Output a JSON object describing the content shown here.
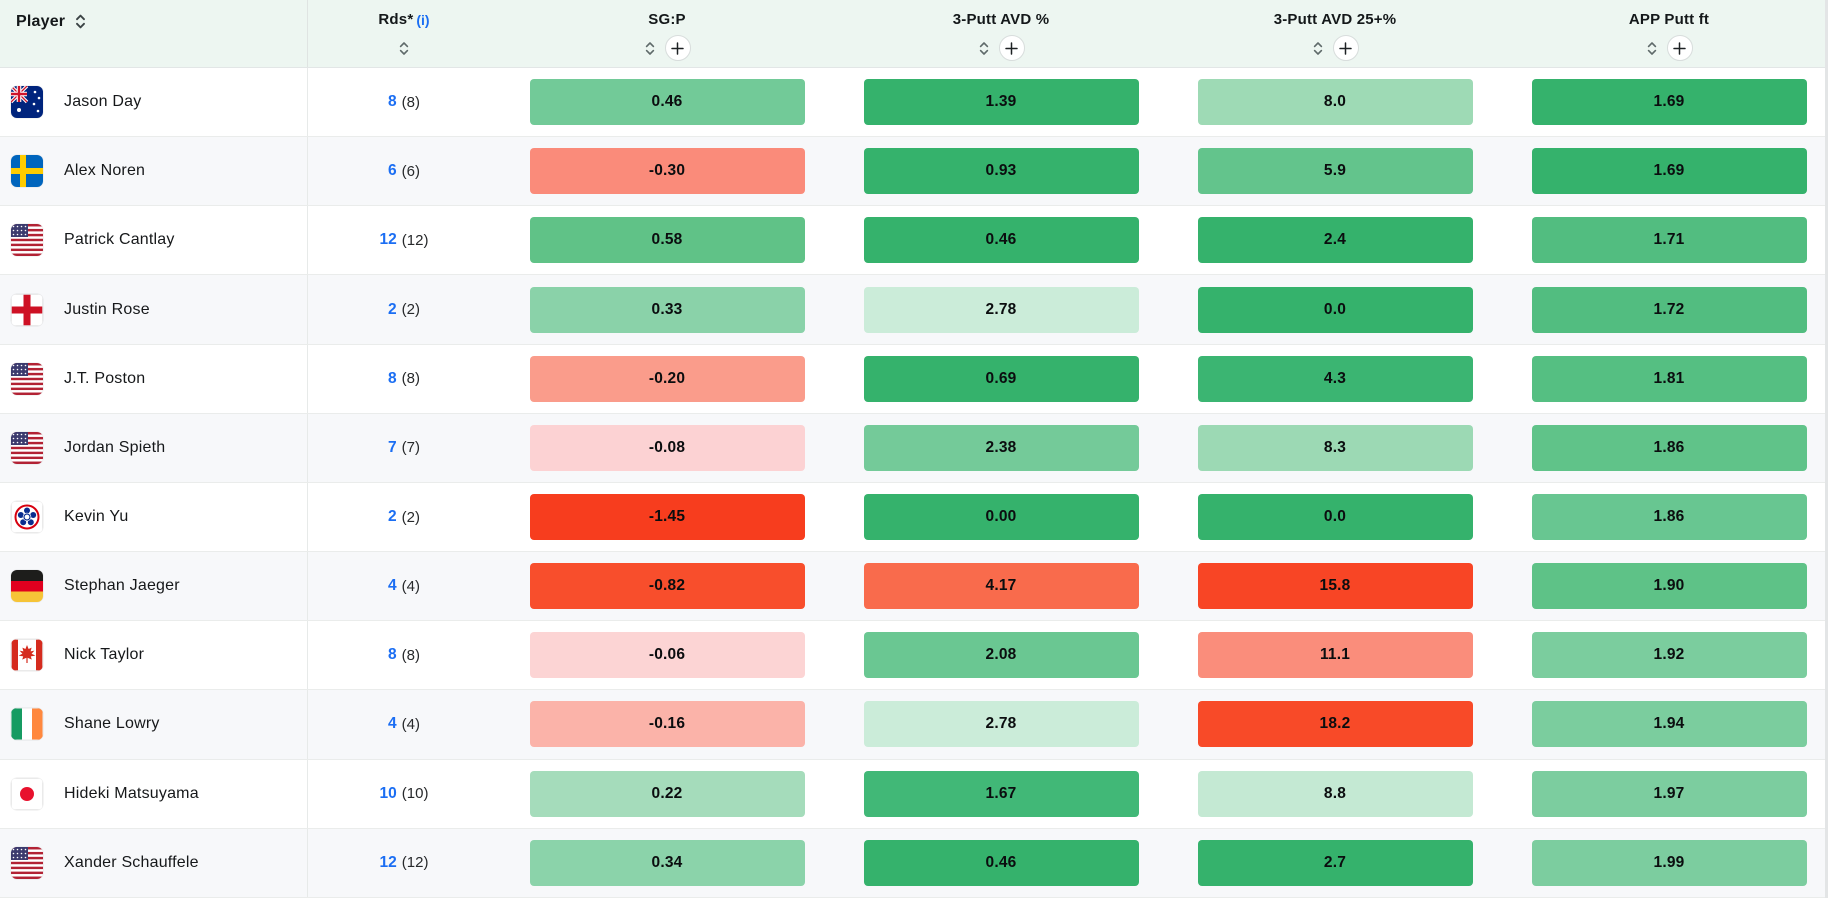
{
  "header": {
    "player_label": "Player",
    "rds_label": "Rds*",
    "rds_info": "(i)",
    "stat_columns": [
      "SG:P",
      "3-Putt AVD %",
      "3-Putt AVD 25+%",
      "APP Putt ft"
    ]
  },
  "colors": {
    "header_bg": "#edf6f1",
    "row_alt_bg": "#f7f8fa",
    "link_blue": "#1b6ef3",
    "green_strong": "#35b26c",
    "red_strong": "#f73d1e"
  },
  "rows": [
    {
      "player": "Jason Day",
      "country": "AUS",
      "rds": "8",
      "rds_paren": "(8)",
      "stats": [
        {
          "value": "0.46",
          "color": "#72ca98"
        },
        {
          "value": "1.39",
          "color": "#35b26c"
        },
        {
          "value": "8.0",
          "color": "#9edab5"
        },
        {
          "value": "1.69",
          "color": "#35b26c"
        }
      ]
    },
    {
      "player": "Alex Noren",
      "country": "SWE",
      "rds": "6",
      "rds_paren": "(6)",
      "stats": [
        {
          "value": "-0.30",
          "color": "#fa8b7a"
        },
        {
          "value": "0.93",
          "color": "#35b26c"
        },
        {
          "value": "5.9",
          "color": "#63c48c"
        },
        {
          "value": "1.69",
          "color": "#35b26c"
        }
      ]
    },
    {
      "player": "Patrick Cantlay",
      "country": "USA",
      "rds": "12",
      "rds_paren": "(12)",
      "stats": [
        {
          "value": "0.58",
          "color": "#60c287"
        },
        {
          "value": "0.46",
          "color": "#35b26c"
        },
        {
          "value": "2.4",
          "color": "#35b26c"
        },
        {
          "value": "1.71",
          "color": "#52bd80"
        }
      ]
    },
    {
      "player": "Justin Rose",
      "country": "ENG",
      "rds": "2",
      "rds_paren": "(2)",
      "stats": [
        {
          "value": "0.33",
          "color": "#8ad2a9"
        },
        {
          "value": "2.78",
          "color": "#cbecd9"
        },
        {
          "value": "0.0",
          "color": "#35b26c"
        },
        {
          "value": "1.72",
          "color": "#52bd80"
        }
      ]
    },
    {
      "player": "J.T. Poston",
      "country": "USA",
      "rds": "8",
      "rds_paren": "(8)",
      "stats": [
        {
          "value": "-0.20",
          "color": "#fa9c8b"
        },
        {
          "value": "0.69",
          "color": "#35b26c"
        },
        {
          "value": "4.3",
          "color": "#3bb572"
        },
        {
          "value": "1.81",
          "color": "#55bf82"
        }
      ]
    },
    {
      "player": "Jordan Spieth",
      "country": "USA",
      "rds": "7",
      "rds_paren": "(7)",
      "stats": [
        {
          "value": "-0.08",
          "color": "#fcd2d3"
        },
        {
          "value": "2.38",
          "color": "#74ca99"
        },
        {
          "value": "8.3",
          "color": "#9cd9b4"
        },
        {
          "value": "1.86",
          "color": "#60c389"
        }
      ]
    },
    {
      "player": "Kevin Yu",
      "country": "TPE",
      "rds": "2",
      "rds_paren": "(2)",
      "stats": [
        {
          "value": "-1.45",
          "color": "#f73d1e"
        },
        {
          "value": "0.00",
          "color": "#35b26c"
        },
        {
          "value": "0.0",
          "color": "#35b26c"
        },
        {
          "value": "1.86",
          "color": "#68c691"
        }
      ]
    },
    {
      "player": "Stephan Jaeger",
      "country": "GER",
      "rds": "4",
      "rds_paren": "(4)",
      "stats": [
        {
          "value": "-0.82",
          "color": "#f84e2c"
        },
        {
          "value": "4.17",
          "color": "#f96b4c"
        },
        {
          "value": "15.8",
          "color": "#f84525"
        },
        {
          "value": "1.90",
          "color": "#5ec287"
        }
      ]
    },
    {
      "player": "Nick Taylor",
      "country": "CAN",
      "rds": "8",
      "rds_paren": "(8)",
      "stats": [
        {
          "value": "-0.06",
          "color": "#fcd4d4"
        },
        {
          "value": "2.08",
          "color": "#6ac792"
        },
        {
          "value": "11.1",
          "color": "#fa8d7b"
        },
        {
          "value": "1.92",
          "color": "#7bcd9e"
        }
      ]
    },
    {
      "player": "Shane Lowry",
      "country": "IRL",
      "rds": "4",
      "rds_paren": "(4)",
      "stats": [
        {
          "value": "-0.16",
          "color": "#fbb3a9"
        },
        {
          "value": "2.78",
          "color": "#cbecd9"
        },
        {
          "value": "18.2",
          "color": "#f84a28"
        },
        {
          "value": "1.94",
          "color": "#7bcd9e"
        }
      ]
    },
    {
      "player": "Hideki Matsuyama",
      "country": "JPN",
      "rds": "10",
      "rds_paren": "(10)",
      "stats": [
        {
          "value": "0.22",
          "color": "#a5dcbb"
        },
        {
          "value": "1.67",
          "color": "#41b877"
        },
        {
          "value": "8.8",
          "color": "#c4e9d3"
        },
        {
          "value": "1.97",
          "color": "#7ccd9f"
        }
      ]
    },
    {
      "player": "Xander Schauffele",
      "country": "USA",
      "rds": "12",
      "rds_paren": "(12)",
      "stats": [
        {
          "value": "0.34",
          "color": "#8bd3aa"
        },
        {
          "value": "0.46",
          "color": "#35b26c"
        },
        {
          "value": "2.7",
          "color": "#35b26c"
        },
        {
          "value": "1.99",
          "color": "#7ccd9f"
        }
      ]
    }
  ]
}
